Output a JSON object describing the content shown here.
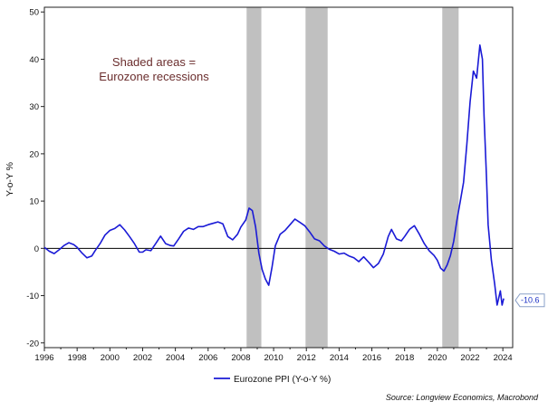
{
  "chart_data": {
    "type": "line",
    "title": "",
    "xlabel": "",
    "ylabel": "Y-o-Y %",
    "xlim": [
      1996,
      2024.6
    ],
    "ylim": [
      -21,
      51
    ],
    "y_ticks": [
      -20,
      -10,
      0,
      10,
      20,
      30,
      40,
      50
    ],
    "x_ticks": [
      1996,
      1998,
      2000,
      2002,
      2004,
      2006,
      2008,
      2010,
      2012,
      2014,
      2016,
      2018,
      2020,
      2022,
      2024
    ],
    "grid": false,
    "zero_line": 0,
    "legend_position": "bottom-center",
    "recessions": [
      {
        "start": 2008.35,
        "end": 2009.25
      },
      {
        "start": 2011.95,
        "end": 2013.3
      },
      {
        "start": 2020.3,
        "end": 2021.3
      }
    ],
    "annotation": {
      "line1": "Shaded areas =",
      "line2": "Eurozone recessions"
    },
    "last_value_label": "-10.6",
    "source": "Source: Longview Economics, Macrobond",
    "series": [
      {
        "name": "Eurozone PPI (Y-o-Y %)",
        "color": "#1a1ad6",
        "x": [
          1996.0,
          1996.3,
          1996.6,
          1996.9,
          1997.2,
          1997.5,
          1997.8,
          1998.0,
          1998.3,
          1998.6,
          1998.9,
          1999.1,
          1999.4,
          1999.7,
          2000.0,
          2000.3,
          2000.6,
          2000.9,
          2001.2,
          2001.5,
          2001.8,
          2002.0,
          2002.2,
          2002.5,
          2002.8,
          2003.1,
          2003.4,
          2003.7,
          2003.9,
          2004.2,
          2004.5,
          2004.8,
          2005.1,
          2005.4,
          2005.7,
          2006.0,
          2006.3,
          2006.6,
          2006.9,
          2007.2,
          2007.5,
          2007.8,
          2008.0,
          2008.3,
          2008.5,
          2008.7,
          2008.9,
          2009.1,
          2009.3,
          2009.5,
          2009.7,
          2009.9,
          2010.1,
          2010.4,
          2010.7,
          2011.0,
          2011.3,
          2011.6,
          2011.9,
          2012.2,
          2012.5,
          2012.8,
          2013.1,
          2013.4,
          2013.7,
          2014.0,
          2014.3,
          2014.6,
          2014.9,
          2015.2,
          2015.5,
          2015.8,
          2016.1,
          2016.4,
          2016.7,
          2017.0,
          2017.2,
          2017.5,
          2017.8,
          2018.0,
          2018.3,
          2018.6,
          2018.9,
          2019.2,
          2019.5,
          2019.8,
          2020.0,
          2020.2,
          2020.4,
          2020.6,
          2020.8,
          2021.0,
          2021.2,
          2021.4,
          2021.6,
          2021.8,
          2022.0,
          2022.2,
          2022.4,
          2022.6,
          2022.75,
          2022.85,
          2023.0,
          2023.1,
          2023.3,
          2023.5,
          2023.65,
          2023.75,
          2023.85,
          2023.95,
          2024.05
        ],
        "values": [
          0.2,
          -0.6,
          -1.1,
          -0.3,
          0.6,
          1.2,
          0.8,
          0.2,
          -1.0,
          -2.0,
          -1.6,
          -0.5,
          1.0,
          2.8,
          3.8,
          4.2,
          5.0,
          3.9,
          2.5,
          1.0,
          -0.8,
          -0.8,
          -0.3,
          -0.5,
          1.0,
          2.6,
          1.0,
          0.6,
          0.5,
          2.0,
          3.6,
          4.3,
          4.0,
          4.6,
          4.6,
          5.0,
          5.3,
          5.6,
          5.2,
          2.5,
          1.8,
          3.0,
          4.5,
          6.0,
          8.5,
          8.0,
          4.5,
          -1.0,
          -4.5,
          -6.5,
          -7.8,
          -4.0,
          0.5,
          3.0,
          3.8,
          5.0,
          6.2,
          5.5,
          4.8,
          3.5,
          2.0,
          1.6,
          0.5,
          -0.2,
          -0.6,
          -1.2,
          -1.0,
          -1.6,
          -2.0,
          -2.8,
          -1.8,
          -2.9,
          -4.1,
          -3.2,
          -1.2,
          2.5,
          4.0,
          2.0,
          1.6,
          2.5,
          4.0,
          4.8,
          3.0,
          1.0,
          -0.5,
          -1.5,
          -2.5,
          -4.2,
          -4.8,
          -3.5,
          -1.5,
          1.5,
          6.0,
          10.0,
          14.0,
          22.0,
          31.0,
          37.5,
          36.0,
          43.0,
          40.0,
          28.0,
          15.0,
          5.0,
          -2.5,
          -7.5,
          -12.0,
          -10.5,
          -9.0,
          -12.0,
          -10.6
        ]
      }
    ]
  }
}
